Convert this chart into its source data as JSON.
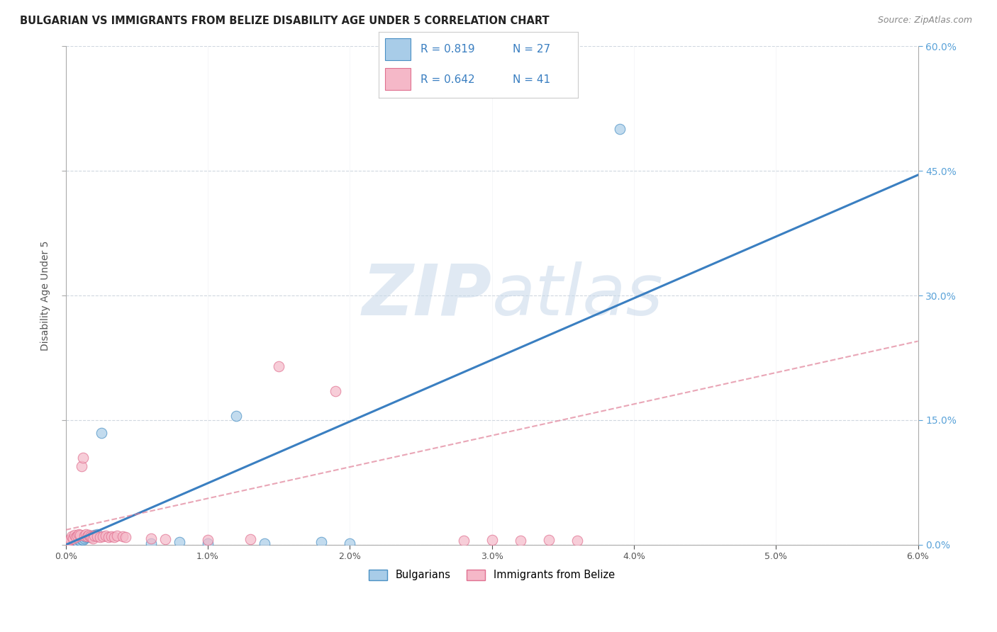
{
  "title": "BULGARIAN VS IMMIGRANTS FROM BELIZE DISABILITY AGE UNDER 5 CORRELATION CHART",
  "source": "Source: ZipAtlas.com",
  "ylabel": "Disability Age Under 5",
  "xlim": [
    0.0,
    0.06
  ],
  "ylim": [
    0.0,
    0.6
  ],
  "xticks": [
    0.0,
    0.01,
    0.02,
    0.03,
    0.04,
    0.05,
    0.06
  ],
  "xticklabels": [
    "0.0%",
    "1.0%",
    "2.0%",
    "3.0%",
    "4.0%",
    "5.0%",
    "6.0%"
  ],
  "yticks": [
    0.0,
    0.15,
    0.3,
    0.45,
    0.6
  ],
  "right_yticklabels": [
    "0.0%",
    "15.0%",
    "30.0%",
    "45.0%",
    "60.0%"
  ],
  "legend_r1": "R = 0.819",
  "legend_n1": "N = 27",
  "legend_r2": "R = 0.642",
  "legend_n2": "N = 41",
  "blue_color": "#a8cce8",
  "blue_edge_color": "#4a90c4",
  "blue_line_color": "#3a7fc1",
  "pink_color": "#f5b8c8",
  "pink_edge_color": "#e07090",
  "pink_line_color": "#e08098",
  "blue_scatter": [
    [
      0.0002,
      0.002
    ],
    [
      0.0004,
      0.003
    ],
    [
      0.0005,
      0.004
    ],
    [
      0.0006,
      0.003
    ],
    [
      0.0007,
      0.005
    ],
    [
      0.0008,
      0.004
    ],
    [
      0.0009,
      0.006
    ],
    [
      0.001,
      0.005
    ],
    [
      0.0011,
      0.007
    ],
    [
      0.0012,
      0.006
    ],
    [
      0.0013,
      0.008
    ],
    [
      0.0014,
      0.009
    ],
    [
      0.0015,
      0.01
    ],
    [
      0.0016,
      0.009
    ],
    [
      0.0017,
      0.011
    ],
    [
      0.0018,
      0.01
    ],
    [
      0.002,
      0.012
    ],
    [
      0.0022,
      0.013
    ],
    [
      0.0025,
      0.135
    ],
    [
      0.006,
      0.002
    ],
    [
      0.008,
      0.003
    ],
    [
      0.01,
      0.002
    ],
    [
      0.012,
      0.155
    ],
    [
      0.014,
      0.002
    ],
    [
      0.018,
      0.003
    ],
    [
      0.02,
      0.002
    ],
    [
      0.039,
      0.5
    ]
  ],
  "pink_scatter": [
    [
      0.0001,
      0.002
    ],
    [
      0.0002,
      0.005
    ],
    [
      0.0003,
      0.007
    ],
    [
      0.0004,
      0.01
    ],
    [
      0.0005,
      0.008
    ],
    [
      0.0006,
      0.012
    ],
    [
      0.0007,
      0.009
    ],
    [
      0.0008,
      0.011
    ],
    [
      0.0009,
      0.013
    ],
    [
      0.001,
      0.012
    ],
    [
      0.0011,
      0.095
    ],
    [
      0.0012,
      0.105
    ],
    [
      0.0013,
      0.011
    ],
    [
      0.0014,
      0.013
    ],
    [
      0.0015,
      0.01
    ],
    [
      0.0016,
      0.012
    ],
    [
      0.0017,
      0.01
    ],
    [
      0.0018,
      0.009
    ],
    [
      0.0019,
      0.008
    ],
    [
      0.002,
      0.011
    ],
    [
      0.0022,
      0.01
    ],
    [
      0.0024,
      0.009
    ],
    [
      0.0026,
      0.01
    ],
    [
      0.0028,
      0.011
    ],
    [
      0.003,
      0.009
    ],
    [
      0.0032,
      0.01
    ],
    [
      0.0034,
      0.009
    ],
    [
      0.0036,
      0.011
    ],
    [
      0.004,
      0.01
    ],
    [
      0.0042,
      0.009
    ],
    [
      0.006,
      0.008
    ],
    [
      0.007,
      0.007
    ],
    [
      0.01,
      0.006
    ],
    [
      0.013,
      0.007
    ],
    [
      0.015,
      0.215
    ],
    [
      0.019,
      0.185
    ],
    [
      0.028,
      0.005
    ],
    [
      0.03,
      0.006
    ],
    [
      0.032,
      0.005
    ],
    [
      0.034,
      0.006
    ],
    [
      0.036,
      0.005
    ]
  ],
  "blue_line_x": [
    0.0,
    0.06
  ],
  "blue_line_y": [
    0.0,
    0.445
  ],
  "pink_line_x": [
    0.0,
    0.06
  ],
  "pink_line_y": [
    0.018,
    0.245
  ],
  "watermark_zip": "ZIP",
  "watermark_atlas": "atlas",
  "background_color": "#ffffff",
  "grid_color": "#d0d8e0",
  "title_fontsize": 10.5,
  "source_fontsize": 9,
  "axis_label_fontsize": 10,
  "tick_fontsize": 9,
  "right_tick_color": "#5ba3d9",
  "legend_text_color": "#3a7fc1"
}
